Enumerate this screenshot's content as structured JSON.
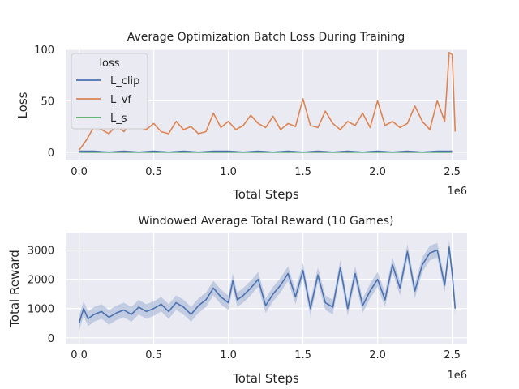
{
  "chart_data": [
    {
      "type": "line",
      "title": "Average Optimization Batch Loss During Training",
      "xlabel": "Total Steps",
      "ylabel": "Loss",
      "x_scale_label": "1e6",
      "xlim": [
        -0.09,
        2.6
      ],
      "ylim": [
        -8,
        100
      ],
      "xticks": [
        0.0,
        0.5,
        1.0,
        1.5,
        2.0,
        2.5
      ],
      "xtick_labels": [
        "0.0",
        "0.5",
        "1.0",
        "1.5",
        "2.0",
        "2.5"
      ],
      "yticks": [
        0,
        50,
        100
      ],
      "ytick_labels": [
        "0",
        "50",
        "100"
      ],
      "grid": true,
      "legend": {
        "title": "loss",
        "placement": "top-left"
      },
      "series": [
        {
          "name": "L_clip",
          "color": "#4c72b0",
          "x": [
            0.0,
            0.1,
            0.2,
            0.3,
            0.4,
            0.5,
            0.6,
            0.7,
            0.8,
            0.9,
            1.0,
            1.1,
            1.2,
            1.3,
            1.4,
            1.5,
            1.6,
            1.7,
            1.8,
            1.9,
            2.0,
            2.1,
            2.2,
            2.3,
            2.4,
            2.5
          ],
          "y": [
            1,
            1,
            0,
            1,
            0,
            1,
            0,
            1,
            0,
            1,
            1,
            0,
            1,
            0,
            1,
            0,
            1,
            0,
            1,
            0,
            1,
            0,
            1,
            0,
            1,
            1
          ]
        },
        {
          "name": "L_vf",
          "color": "#dd8452",
          "x": [
            0.0,
            0.05,
            0.1,
            0.15,
            0.2,
            0.25,
            0.3,
            0.35,
            0.4,
            0.45,
            0.5,
            0.55,
            0.6,
            0.65,
            0.7,
            0.75,
            0.8,
            0.85,
            0.9,
            0.95,
            1.0,
            1.05,
            1.1,
            1.15,
            1.2,
            1.25,
            1.3,
            1.35,
            1.4,
            1.45,
            1.5,
            1.55,
            1.6,
            1.65,
            1.7,
            1.75,
            1.8,
            1.85,
            1.9,
            1.95,
            2.0,
            2.05,
            2.1,
            2.15,
            2.2,
            2.25,
            2.3,
            2.35,
            2.4,
            2.45,
            2.48,
            2.5,
            2.52
          ],
          "y": [
            2,
            12,
            25,
            22,
            18,
            26,
            20,
            30,
            24,
            22,
            28,
            20,
            18,
            30,
            22,
            25,
            18,
            20,
            38,
            24,
            30,
            22,
            26,
            36,
            28,
            24,
            35,
            22,
            28,
            25,
            52,
            26,
            24,
            40,
            28,
            22,
            30,
            26,
            38,
            24,
            50,
            26,
            30,
            24,
            28,
            45,
            30,
            22,
            50,
            30,
            97,
            95,
            20
          ]
        },
        {
          "name": "L_s",
          "color": "#55a868",
          "x": [
            0.0,
            0.1,
            0.2,
            0.3,
            0.4,
            0.5,
            0.6,
            0.7,
            0.8,
            0.9,
            1.0,
            1.1,
            1.2,
            1.3,
            1.4,
            1.5,
            1.6,
            1.7,
            1.8,
            1.9,
            2.0,
            2.1,
            2.2,
            2.3,
            2.4,
            2.5
          ],
          "y": [
            0,
            0,
            0,
            0,
            0,
            0,
            0,
            0,
            0,
            0,
            0,
            0,
            0,
            0,
            0,
            0,
            0,
            0,
            0,
            0,
            0,
            0,
            0,
            0,
            0,
            0
          ]
        }
      ]
    },
    {
      "type": "line",
      "title": "Windowed Average Total Reward (10 Games)",
      "xlabel": "Total Steps",
      "ylabel": "Total Reward",
      "x_scale_label": "1e6",
      "xlim": [
        -0.09,
        2.6
      ],
      "ylim": [
        -200,
        3600
      ],
      "xticks": [
        0.0,
        0.5,
        1.0,
        1.5,
        2.0,
        2.5
      ],
      "xtick_labels": [
        "0.0",
        "0.5",
        "1.0",
        "1.5",
        "2.0",
        "2.5"
      ],
      "yticks": [
        0,
        1000,
        2000,
        3000
      ],
      "ytick_labels": [
        "0",
        "1000",
        "2000",
        "3000"
      ],
      "grid": true,
      "series": [
        {
          "color": "#4c72b0",
          "band_color": "#a3b6d6",
          "band_halfwidth": 250,
          "x": [
            0.0,
            0.03,
            0.06,
            0.1,
            0.15,
            0.2,
            0.25,
            0.3,
            0.35,
            0.4,
            0.45,
            0.5,
            0.55,
            0.6,
            0.65,
            0.7,
            0.75,
            0.8,
            0.85,
            0.9,
            0.95,
            1.0,
            1.03,
            1.06,
            1.1,
            1.15,
            1.2,
            1.25,
            1.3,
            1.35,
            1.4,
            1.45,
            1.5,
            1.55,
            1.6,
            1.65,
            1.7,
            1.75,
            1.8,
            1.85,
            1.9,
            1.95,
            2.0,
            2.05,
            2.1,
            2.15,
            2.2,
            2.25,
            2.3,
            2.35,
            2.4,
            2.45,
            2.48,
            2.5,
            2.52
          ],
          "y": [
            500,
            1000,
            650,
            800,
            900,
            700,
            850,
            950,
            800,
            1050,
            900,
            1000,
            1150,
            900,
            1200,
            1050,
            800,
            1100,
            1300,
            1700,
            1400,
            1200,
            1950,
            1300,
            1450,
            1700,
            2000,
            1100,
            1500,
            1800,
            2200,
            1400,
            2300,
            1000,
            2150,
            1200,
            1050,
            2400,
            1000,
            2200,
            1100,
            1600,
            2000,
            1300,
            2500,
            1700,
            2950,
            1600,
            2500,
            2900,
            3000,
            1800,
            3100,
            2200,
            1000
          ]
        }
      ]
    }
  ]
}
